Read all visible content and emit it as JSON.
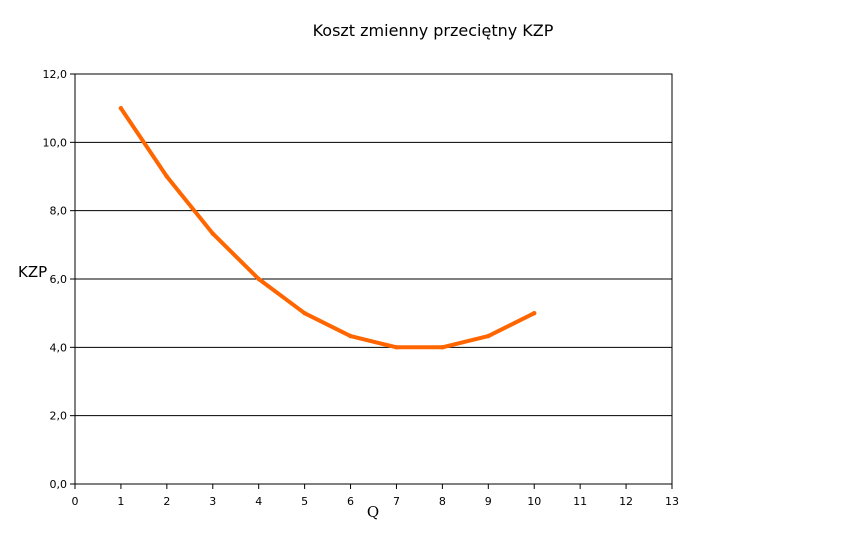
{
  "chart_data": {
    "type": "line",
    "title": "Koszt zmienny przeciętny KZP",
    "xlabel": "Q",
    "ylabel": "KZP",
    "xlim": [
      0,
      13
    ],
    "ylim": [
      0,
      12
    ],
    "x_ticks": [
      "0",
      "1",
      "2",
      "3",
      "4",
      "5",
      "6",
      "7",
      "8",
      "9",
      "10",
      "11",
      "12",
      "13"
    ],
    "y_ticks": [
      "0,0",
      "2,0",
      "4,0",
      "6,0",
      "8,0",
      "10,0",
      "12,0"
    ],
    "grid": "horizontal",
    "legend": "none",
    "series": [
      {
        "color": "#ff6600",
        "x": [
          1,
          2,
          3,
          4,
          5,
          6,
          7,
          8,
          9,
          10
        ],
        "y": [
          11.0,
          9.0,
          7.33,
          6.0,
          5.0,
          4.33,
          4.0,
          4.0,
          4.33,
          5.0
        ]
      }
    ]
  }
}
